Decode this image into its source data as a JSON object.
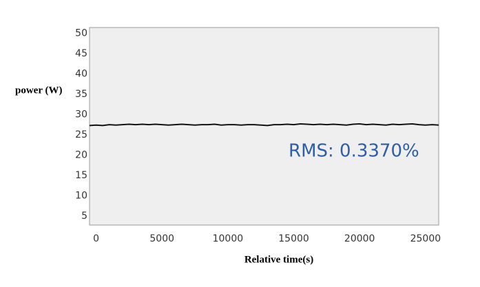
{
  "chart_data": {
    "type": "line",
    "y_label": "power (W)",
    "x_label": "Relative time(s)",
    "annotation": "RMS: 0.3370%",
    "annotation_color": "#2e5ea8",
    "x": [
      -500,
      0,
      500,
      1000,
      1500,
      2000,
      2500,
      3000,
      3500,
      4000,
      4500,
      5000,
      5500,
      6000,
      6500,
      7000,
      7500,
      8000,
      8500,
      9000,
      9500,
      10000,
      10500,
      11000,
      11500,
      12000,
      12500,
      13000,
      13500,
      14000,
      14500,
      15000,
      15500,
      16000,
      16500,
      17000,
      17500,
      18000,
      18500,
      19000,
      19500,
      20000,
      20500,
      21000,
      21500,
      22000,
      22500,
      23000,
      23500,
      24000,
      24500,
      25000,
      25500,
      26000
    ],
    "series": [
      {
        "color": "#111111",
        "values": [
          27.3,
          27.4,
          27.3,
          27.5,
          27.4,
          27.5,
          27.6,
          27.5,
          27.6,
          27.5,
          27.6,
          27.5,
          27.4,
          27.5,
          27.6,
          27.5,
          27.4,
          27.5,
          27.5,
          27.6,
          27.4,
          27.5,
          27.5,
          27.4,
          27.5,
          27.5,
          27.4,
          27.3,
          27.5,
          27.5,
          27.6,
          27.5,
          27.7,
          27.6,
          27.5,
          27.6,
          27.5,
          27.6,
          27.5,
          27.4,
          27.6,
          27.7,
          27.5,
          27.6,
          27.5,
          27.4,
          27.6,
          27.5,
          27.6,
          27.7,
          27.5,
          27.4,
          27.5,
          27.4
        ]
      }
    ],
    "xlim": [
      -500,
      26000
    ],
    "ylim": [
      2.8,
      51.4
    ],
    "xticks": [
      0,
      5000,
      10000,
      15000,
      20000,
      25000
    ],
    "yticks": [
      5,
      10,
      15,
      20,
      25,
      30,
      35,
      40,
      45,
      50
    ]
  }
}
